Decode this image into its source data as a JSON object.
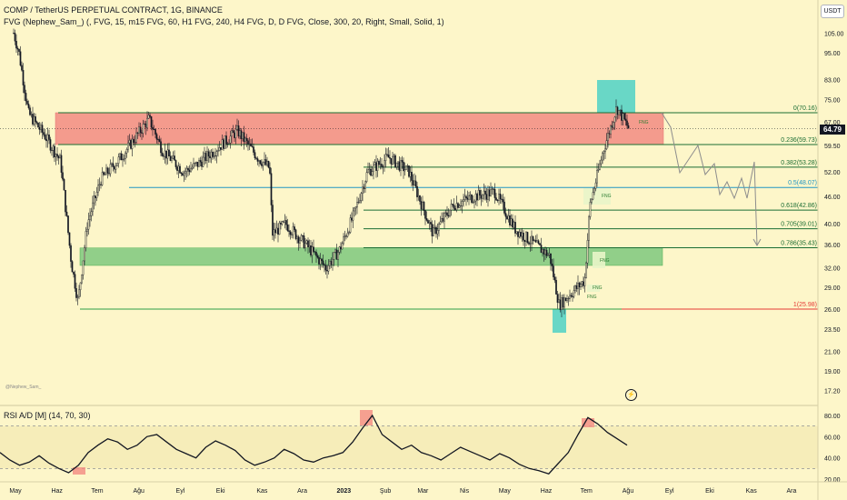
{
  "header": {
    "title": "COMP / TetherUS PERPETUAL CONTRACT, 1G, BINANCE",
    "indicator": "FVG (Nephew_Sam_) (, FVG, 15, m15 FVG, 60, H1 FVG, 240, H4 FVG, D, D FVG, Close, 300, 20, Right, Small, Solid, 1)",
    "currency": "USDT",
    "last_price": "64.79"
  },
  "watermark": "@Nephew_Sam_",
  "rsi_panel": {
    "label": "RSI A/D [M] (14, 70, 30)",
    "ticks": [
      "80.00",
      "60.00",
      "40.00",
      "20.00"
    ]
  },
  "price_axis_ticks": [
    "105.00",
    "95.00",
    "83.00",
    "75.00",
    "67.00",
    "59.50",
    "52.00",
    "46.00",
    "40.00",
    "36.00",
    "32.00",
    "29.00",
    "26.00",
    "23.50",
    "21.00",
    "19.00",
    "17.20"
  ],
  "time_axis_ticks": [
    "May",
    "Haz",
    "Tem",
    "Ağu",
    "Eyl",
    "Eki",
    "Kas",
    "Ara",
    "2023",
    "Şub",
    "Mar",
    "Nis",
    "May",
    "Haz",
    "Tem",
    "Ağu",
    "Eyl",
    "Eki",
    "Kas",
    "Ara"
  ],
  "colors": {
    "background": "#fdf6c9",
    "red_zone": "#f28b82",
    "green_zone": "#7ec87e",
    "teal_box": "#4fd1c5",
    "fib_line": "#1b6e34",
    "fib_blue": "#2196c4",
    "fib_red": "#e53935",
    "candle": "#131722"
  },
  "chart_data": {
    "type": "candlestick",
    "title": "COMP / TetherUS PERPETUAL CONTRACT, 1G, BINANCE",
    "last_price": 64.79,
    "y_scale": "log",
    "fib_levels": [
      {
        "ratio": "0",
        "price": 70.16,
        "label": "0(70.16)"
      },
      {
        "ratio": "0.236",
        "price": 59.73,
        "label": "0.236(59.73)"
      },
      {
        "ratio": "0.382",
        "price": 53.28,
        "label": "0.382(53.28)"
      },
      {
        "ratio": "0.5",
        "price": 48.07,
        "label": "0.5(48.07)"
      },
      {
        "ratio": "0.618",
        "price": 42.86,
        "label": "0.618(42.86)"
      },
      {
        "ratio": "0.705",
        "price": 39.01,
        "label": "0.705(39.01)"
      },
      {
        "ratio": "0.786",
        "price": 35.43,
        "label": "0.786(35.43)"
      },
      {
        "ratio": "1",
        "price": 25.98,
        "label": "1(25.98)"
      }
    ],
    "zones": [
      {
        "name": "resistance",
        "from": 59.73,
        "to": 70.16
      },
      {
        "name": "support",
        "from": 32.4,
        "to": 35.4
      }
    ],
    "fvg_tags": [
      "FNG",
      "FNG",
      "FNG",
      "FNG",
      "FNG"
    ],
    "price_path": [
      [
        "2022-04-25",
        122
      ],
      [
        "2022-05-05",
        95
      ],
      [
        "2022-05-12",
        70
      ],
      [
        "2022-05-25",
        62
      ],
      [
        "2022-06-05",
        55
      ],
      [
        "2022-06-13",
        33
      ],
      [
        "2022-06-18",
        27
      ],
      [
        "2022-06-25",
        40
      ],
      [
        "2022-07-05",
        50
      ],
      [
        "2022-07-20",
        56
      ],
      [
        "2022-08-10",
        68
      ],
      [
        "2022-08-20",
        58
      ],
      [
        "2022-09-05",
        52
      ],
      [
        "2022-09-15",
        54
      ],
      [
        "2022-10-01",
        59
      ],
      [
        "2022-10-15",
        64
      ],
      [
        "2022-10-30",
        56
      ],
      [
        "2022-11-08",
        53
      ],
      [
        "2022-11-10",
        38
      ],
      [
        "2022-11-20",
        40
      ],
      [
        "2022-12-05",
        36
      ],
      [
        "2022-12-20",
        32
      ],
      [
        "2022-12-30",
        35
      ],
      [
        "2023-01-10",
        42
      ],
      [
        "2023-01-20",
        52
      ],
      [
        "2023-02-05",
        56
      ],
      [
        "2023-02-20",
        52
      ],
      [
        "2023-03-10",
        38
      ],
      [
        "2023-03-25",
        44
      ],
      [
        "2023-04-10",
        46
      ],
      [
        "2023-04-25",
        47
      ],
      [
        "2023-05-10",
        39
      ],
      [
        "2023-05-25",
        36
      ],
      [
        "2023-06-05",
        34
      ],
      [
        "2023-06-12",
        26.5
      ],
      [
        "2023-06-20",
        28
      ],
      [
        "2023-07-01",
        30
      ],
      [
        "2023-07-05",
        44
      ],
      [
        "2023-07-15",
        58
      ],
      [
        "2023-07-25",
        72
      ],
      [
        "2023-08-03",
        64.79
      ]
    ],
    "rsi": {
      "name": "RSI A/D [M]",
      "overbought": 70,
      "oversold": 30,
      "ylim": [
        20,
        85
      ],
      "values": [
        45,
        38,
        33,
        36,
        42,
        35,
        30,
        26,
        33,
        45,
        52,
        58,
        55,
        48,
        52,
        60,
        62,
        55,
        48,
        44,
        40,
        50,
        56,
        52,
        47,
        38,
        33,
        36,
        40,
        48,
        44,
        38,
        36,
        40,
        42,
        45,
        55,
        68,
        80,
        62,
        55,
        48,
        52,
        45,
        42,
        38,
        44,
        50,
        46,
        42,
        38,
        44,
        40,
        34,
        30,
        28,
        25,
        35,
        45,
        62,
        78,
        72,
        64,
        58,
        52
      ]
    }
  }
}
